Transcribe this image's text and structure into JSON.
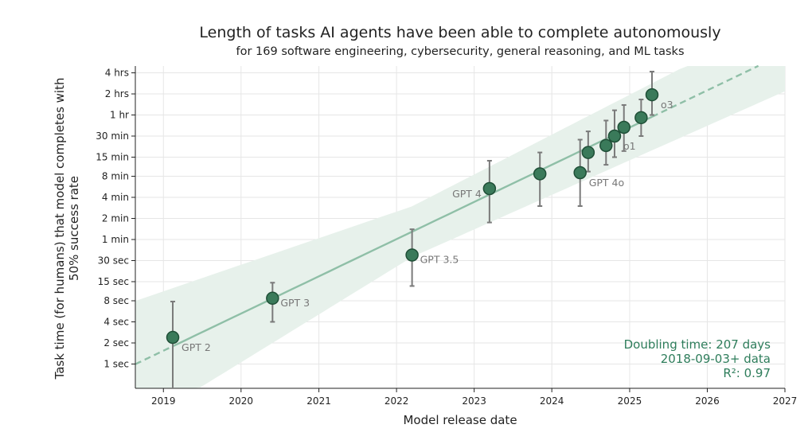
{
  "chart_data": {
    "type": "scatter",
    "title": "Length of tasks AI agents have been able to complete autonomously",
    "subtitle": "for 169 software engineering, cybersecurity, general reasoning, and ML tasks",
    "xlabel": "Model release date",
    "ylabel_line1": "Task time (for humans) that model completes with",
    "ylabel_line2": "50% success rate",
    "x_scale": "date",
    "y_scale": "log",
    "xlim": [
      "2018-08-22",
      "2027-01-01"
    ],
    "ylim_seconds": [
      0.45,
      18000
    ],
    "x_ticks": [
      "2019",
      "2020",
      "2021",
      "2022",
      "2023",
      "2024",
      "2025",
      "2026",
      "2027"
    ],
    "y_ticks": [
      {
        "label": "1 sec",
        "seconds": 1
      },
      {
        "label": "2 sec",
        "seconds": 2
      },
      {
        "label": "4 sec",
        "seconds": 4
      },
      {
        "label": "8 sec",
        "seconds": 8
      },
      {
        "label": "15 sec",
        "seconds": 15
      },
      {
        "label": "30 sec",
        "seconds": 30
      },
      {
        "label": "1 min",
        "seconds": 60
      },
      {
        "label": "2 min",
        "seconds": 120
      },
      {
        "label": "4 min",
        "seconds": 240
      },
      {
        "label": "8 min",
        "seconds": 480
      },
      {
        "label": "15 min",
        "seconds": 900
      },
      {
        "label": "30 min",
        "seconds": 1800
      },
      {
        "label": "1 hr",
        "seconds": 3600
      },
      {
        "label": "2 hrs",
        "seconds": 7200
      },
      {
        "label": "4 hrs",
        "seconds": 14400
      }
    ],
    "grid": true,
    "points": [
      {
        "label": "GPT 2",
        "date": "2019-02-14",
        "seconds": 2.4,
        "ci": [
          0.45,
          7.8
        ],
        "label_pos": "below-right"
      },
      {
        "label": "GPT 3",
        "date": "2020-05-28",
        "seconds": 8.7,
        "ci": [
          4.0,
          14.5
        ],
        "label_pos": "right"
      },
      {
        "label": "GPT 3.5",
        "date": "2022-03-15",
        "seconds": 36,
        "ci": [
          13,
          84
        ],
        "label_pos": "right"
      },
      {
        "label": "GPT 4",
        "date": "2023-03-14",
        "seconds": 320,
        "ci": [
          105,
          800
        ],
        "label_pos": "left"
      },
      {
        "label": "",
        "date": "2023-11-06",
        "seconds": 520,
        "ci": [
          180,
          1050
        ]
      },
      {
        "label": "GPT 4o",
        "date": "2024-05-13",
        "seconds": 540,
        "ci": [
          180,
          1600
        ],
        "label_pos": "below-right"
      },
      {
        "label": "",
        "date": "2024-06-20",
        "seconds": 1050,
        "ci": [
          560,
          2100
        ]
      },
      {
        "label": "",
        "date": "2024-09-12",
        "seconds": 1320,
        "ci": [
          700,
          3000
        ]
      },
      {
        "label": "o1",
        "date": "2024-10-22",
        "seconds": 1800,
        "ci": [
          900,
          4200
        ],
        "label_pos": "below-right"
      },
      {
        "label": "",
        "date": "2024-12-05",
        "seconds": 2400,
        "ci": [
          1100,
          5000
        ]
      },
      {
        "label": "",
        "date": "2025-02-24",
        "seconds": 3300,
        "ci": [
          1800,
          6000
        ]
      },
      {
        "label": "o3",
        "date": "2025-04-16",
        "seconds": 7000,
        "ci": [
          3600,
          15000
        ],
        "label_pos": "below-right"
      }
    ],
    "trend": {
      "doubling_days": 207,
      "anchor_date": "2024-01-01",
      "anchor_seconds": 700,
      "fit_range": [
        "2019-02-14",
        "2025-04-16"
      ],
      "band_factor_start": 8,
      "band_factor_mid": 2.3,
      "band_factor_end": 3.5
    },
    "annotations": [
      "Doubling time: 207 days",
      "2018-09-03+ data",
      "R²: 0.97"
    ],
    "colors": {
      "point_fill": "#3a7a5a",
      "point_stroke": "#1f4f37",
      "trend": "#8fbfa7",
      "band": "#e7f1eb",
      "errorbar": "#7a7a7a",
      "annotation": "#2e7d5b",
      "grid": "#e6e6e6"
    }
  }
}
